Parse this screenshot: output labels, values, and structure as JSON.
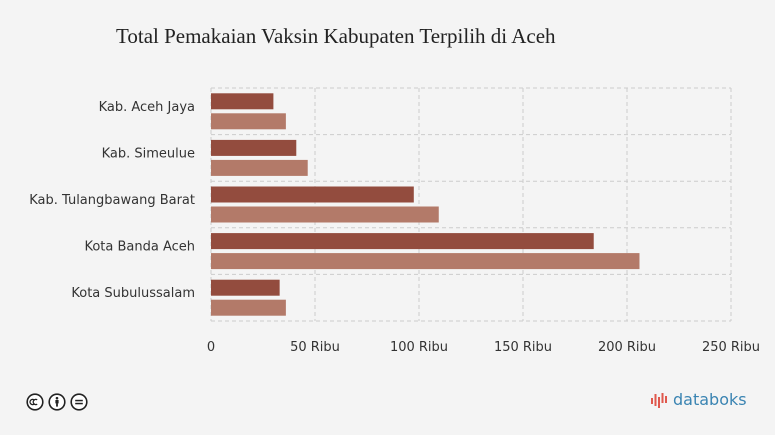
{
  "colors": {
    "background": "#f4f4f4",
    "series1": "#934c3e",
    "series2": "#b37a69",
    "grid": "#cccccc",
    "brand": "#3a84b2",
    "brand_bars": "#e0584d"
  },
  "brand": {
    "name": "databoks",
    "icon": "databoks-logo-bars-icon"
  },
  "license_icons": [
    "creative-commons-icon",
    "attribution-icon",
    "no-derivatives-icon"
  ],
  "chart_data": {
    "type": "bar",
    "orientation": "horizontal",
    "title": "Total Pemakaian Vaksin Kabupaten Terpilih di Aceh",
    "categories": [
      "Kab. Aceh Jaya",
      "Kab. Simeulue",
      "Kab. Tulangbawang Barat",
      "Kota Banda Aceh",
      "Kota Subulussalam"
    ],
    "series": [
      {
        "values": [
          30000,
          41000,
          97500,
          184000,
          33000
        ]
      },
      {
        "values": [
          36000,
          46500,
          109500,
          206000,
          36000
        ]
      }
    ],
    "xlim": [
      0,
      250000
    ],
    "x_ticks": [
      0,
      50000,
      100000,
      150000,
      200000,
      250000
    ],
    "x_tick_labels": [
      "0",
      "50 Ribu",
      "100 Ribu",
      "150 Ribu",
      "200 Ribu",
      "250 Ribu"
    ],
    "grid": true,
    "legend": false
  }
}
